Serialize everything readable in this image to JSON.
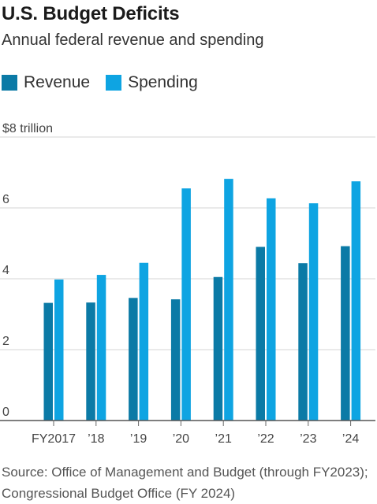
{
  "title": "U.S. Budget Deficits",
  "subtitle": "Annual federal revenue and spending",
  "legend": {
    "revenue_label": "Revenue",
    "spending_label": "Spending"
  },
  "colors": {
    "revenue": "#0b7aa6",
    "spending": "#0ea4e2"
  },
  "source": "Source: Office of Management and Budget (through FY2023); Congressional Budget Office (FY 2024)",
  "chart_data": {
    "type": "bar",
    "categories": [
      "FY2017",
      "’18",
      "’19",
      "’20",
      "’21",
      "’22",
      "’23",
      "’24"
    ],
    "series": [
      {
        "name": "Revenue",
        "values": [
          3.32,
          3.33,
          3.46,
          3.42,
          4.05,
          4.9,
          4.44,
          4.92
        ]
      },
      {
        "name": "Spending",
        "values": [
          3.98,
          4.11,
          4.45,
          6.55,
          6.82,
          6.27,
          6.13,
          6.75
        ]
      }
    ],
    "yticks": [
      0,
      2,
      4,
      6,
      8
    ],
    "ytick_labels": [
      "0",
      "2",
      "4",
      "6",
      "$8 trillion"
    ],
    "ylim": [
      0,
      8
    ],
    "grid": true
  }
}
